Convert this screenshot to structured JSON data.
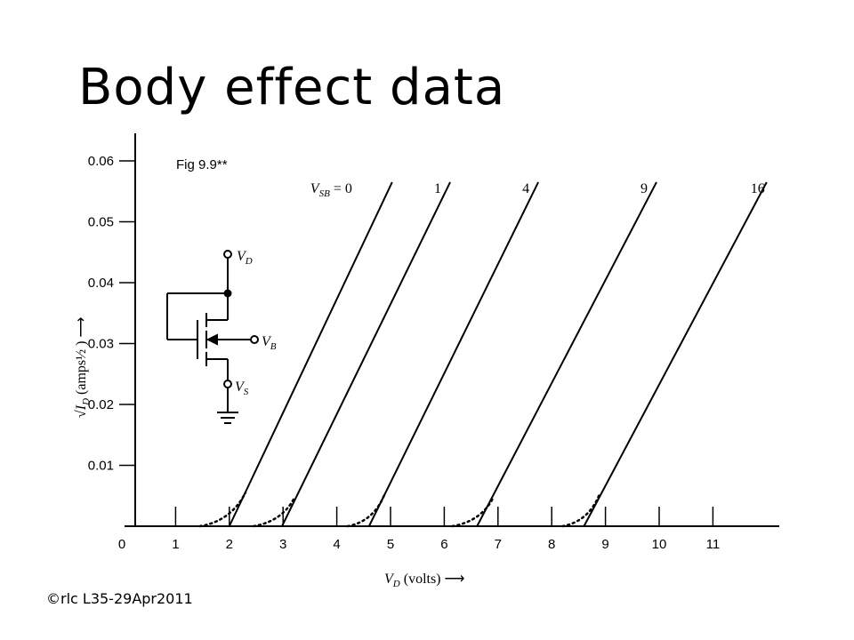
{
  "slide": {
    "title": "Body effect data",
    "footer": "©rlc L35-29Apr2011",
    "figure_label": "Fig 9.9**"
  },
  "chart_data": {
    "type": "line",
    "xlabel": "V_D (volts)",
    "ylabel": "√I_D (amps½)",
    "xlim": [
      0,
      12
    ],
    "ylim": [
      0,
      0.062
    ],
    "x_ticks": [
      "0",
      "1",
      "2",
      "3",
      "4",
      "5",
      "6",
      "7",
      "8",
      "9",
      "10",
      "11"
    ],
    "y_ticks": [
      "0.01",
      "0.02",
      "0.03",
      "0.04",
      "0.05",
      "0.06"
    ],
    "y_tick_values": [
      0.01,
      0.02,
      0.03,
      0.04,
      0.05,
      0.06
    ],
    "series_param": "V_SB",
    "series": [
      {
        "name": "V_SB = 0",
        "label": "V_SB = 0",
        "x": [
          2.0,
          5.03
        ],
        "y": [
          0,
          0.0565
        ],
        "tail_x": [
          1.45,
          2.3
        ],
        "tail_y": [
          0,
          0.0055
        ]
      },
      {
        "name": "1",
        "label": "1",
        "x": [
          2.98,
          6.11
        ],
        "y": [
          0,
          0.0565
        ],
        "tail_x": [
          2.45,
          3.2
        ],
        "tail_y": [
          0,
          0.0045
        ]
      },
      {
        "name": "4",
        "label": "4",
        "x": [
          4.6,
          7.75
        ],
        "y": [
          0,
          0.0565
        ],
        "tail_x": [
          4.2,
          4.9
        ],
        "tail_y": [
          0,
          0.0055
        ]
      },
      {
        "name": "9",
        "label": "9",
        "x": [
          6.61,
          9.95
        ],
        "y": [
          0,
          0.0565
        ],
        "tail_x": [
          6.15,
          6.9
        ],
        "tail_y": [
          0,
          0.0045
        ]
      },
      {
        "name": "16",
        "label": "16",
        "x": [
          8.6,
          12.0
        ],
        "y": [
          0,
          0.0565
        ],
        "tail_x": [
          8.2,
          8.9
        ],
        "tail_y": [
          0,
          0.0055
        ]
      }
    ]
  },
  "circuit": {
    "drain": "V_D",
    "bulk": "V_B",
    "source": "V_S"
  }
}
